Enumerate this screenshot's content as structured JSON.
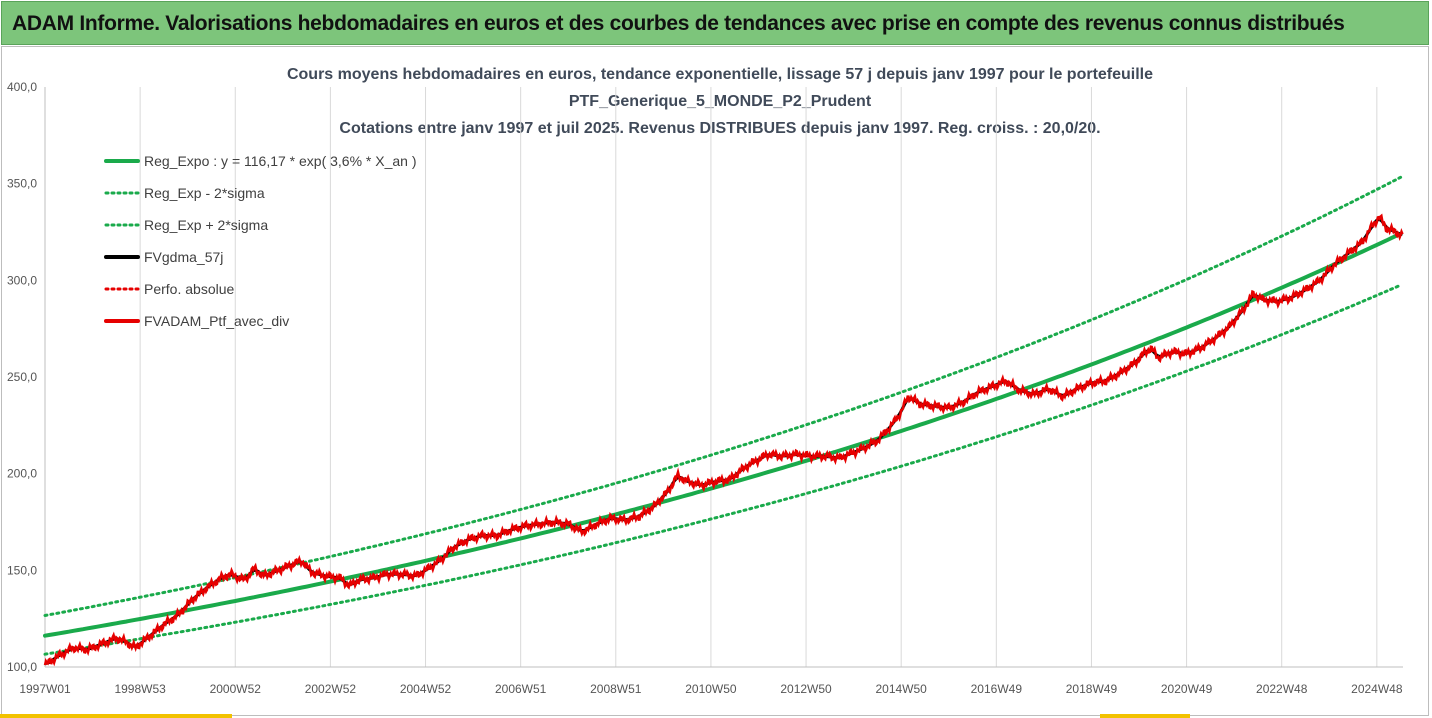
{
  "header": {
    "title": "ADAM Informe. Valorisations hebdomadaires en euros et des courbes de tendances avec prise en compte des revenus connus distribués"
  },
  "chart_data": {
    "type": "line",
    "title_lines": [
      "Cours moyens hebdomadaires  en euros, tendance exponentielle, lissage 57 j depuis janv 1997 pour le portefeuille",
      "PTF_Generique_5_MONDE_P2_Prudent",
      "Cotations  entre janv 1997 et juil 2025. Revenus DISTRIBUES depuis janv 1997. Reg. croiss. : 20,0/20."
    ],
    "x_ticks": [
      "1997W01",
      "1998W53",
      "2000W52",
      "2002W52",
      "2004W52",
      "2006W51",
      "2008W51",
      "2010W50",
      "2012W50",
      "2014W50",
      "2016W49",
      "2018W49",
      "2020W49",
      "2022W48",
      "2024W48"
    ],
    "x_tick_years": [
      1997.0,
      1999.0,
      2001.0,
      2003.0,
      2005.0,
      2007.0,
      2009.0,
      2011.0,
      2013.0,
      2015.0,
      2017.0,
      2019.0,
      2021.0,
      2023.0,
      2025.0
    ],
    "x_range": [
      1997.0,
      2025.55
    ],
    "y_ticks": [
      "100,0",
      "150,0",
      "200,0",
      "250,0",
      "300,0",
      "350,0",
      "400,0"
    ],
    "y_tick_values": [
      100,
      150,
      200,
      250,
      300,
      350,
      400
    ],
    "ylim": [
      100,
      400
    ],
    "grid": "vertical",
    "legend_position": "top-left",
    "series": [
      {
        "name": "Reg_Expo : y = 116,17 * exp( 3,6% *  X_an )",
        "kind": "trend",
        "style": "solid",
        "color": "#1aaa4b",
        "a": 116.17,
        "rate": 0.036,
        "factor": 1.0
      },
      {
        "name": "Reg_Exp - 2*sigma",
        "kind": "trend",
        "style": "dotted",
        "color": "#1aaa4b",
        "a": 116.17,
        "rate": 0.036,
        "factor": 0.918
      },
      {
        "name": "Reg_Exp + 2*sigma",
        "kind": "trend",
        "style": "dotted",
        "color": "#1aaa4b",
        "a": 116.17,
        "rate": 0.036,
        "factor": 1.09
      },
      {
        "name": "FVgdma_57j",
        "kind": "smooth",
        "style": "solid",
        "color": "#000000"
      },
      {
        "name": "Perfo. absolue",
        "kind": "legend-only",
        "style": "dotted",
        "color": "#e60000"
      },
      {
        "name": "FVADAM_Ptf_avec_div",
        "kind": "price",
        "style": "solid",
        "color": "#e60000"
      }
    ],
    "price_points": [
      [
        1997.0,
        101
      ],
      [
        1997.3,
        106
      ],
      [
        1997.6,
        110
      ],
      [
        1997.9,
        109
      ],
      [
        1998.2,
        112
      ],
      [
        1998.5,
        115
      ],
      [
        1998.7,
        113
      ],
      [
        1998.9,
        110
      ],
      [
        1999.2,
        116
      ],
      [
        1999.5,
        122
      ],
      [
        1999.8,
        127
      ],
      [
        2000.1,
        135
      ],
      [
        2000.4,
        141
      ],
      [
        2000.7,
        146
      ],
      [
        2000.9,
        148
      ],
      [
        2001.2,
        145
      ],
      [
        2001.4,
        151
      ],
      [
        2001.6,
        147
      ],
      [
        2001.9,
        150
      ],
      [
        2002.2,
        153
      ],
      [
        2002.4,
        155
      ],
      [
        2002.6,
        149
      ],
      [
        2002.9,
        147
      ],
      [
        2003.2,
        146
      ],
      [
        2003.4,
        142
      ],
      [
        2003.6,
        145
      ],
      [
        2003.9,
        146
      ],
      [
        2004.2,
        148
      ],
      [
        2004.5,
        148
      ],
      [
        2004.8,
        147
      ],
      [
        2005.0,
        150
      ],
      [
        2005.3,
        155
      ],
      [
        2005.6,
        162
      ],
      [
        2005.9,
        166
      ],
      [
        2006.2,
        168
      ],
      [
        2006.5,
        168
      ],
      [
        2006.8,
        171
      ],
      [
        2007.1,
        173
      ],
      [
        2007.4,
        174
      ],
      [
        2007.7,
        175
      ],
      [
        2008.0,
        174
      ],
      [
        2008.3,
        170
      ],
      [
        2008.6,
        174
      ],
      [
        2008.9,
        177
      ],
      [
        2009.2,
        176
      ],
      [
        2009.5,
        178
      ],
      [
        2009.8,
        183
      ],
      [
        2010.1,
        191
      ],
      [
        2010.3,
        199
      ],
      [
        2010.5,
        196
      ],
      [
        2010.8,
        194
      ],
      [
        2011.1,
        196
      ],
      [
        2011.4,
        197
      ],
      [
        2011.7,
        203
      ],
      [
        2011.9,
        206
      ],
      [
        2012.2,
        210
      ],
      [
        2012.5,
        209
      ],
      [
        2012.8,
        210
      ],
      [
        2013.1,
        209
      ],
      [
        2013.4,
        209
      ],
      [
        2013.7,
        208
      ],
      [
        2013.9,
        210
      ],
      [
        2014.2,
        213
      ],
      [
        2014.5,
        217
      ],
      [
        2014.8,
        225
      ],
      [
        2015.0,
        232
      ],
      [
        2015.15,
        240
      ],
      [
        2015.4,
        236
      ],
      [
        2015.7,
        235
      ],
      [
        2016.0,
        234
      ],
      [
        2016.3,
        237
      ],
      [
        2016.6,
        242
      ],
      [
        2016.9,
        245
      ],
      [
        2017.2,
        248
      ],
      [
        2017.5,
        243
      ],
      [
        2017.8,
        241
      ],
      [
        2018.1,
        244
      ],
      [
        2018.4,
        240
      ],
      [
        2018.7,
        244
      ],
      [
        2019.0,
        247
      ],
      [
        2019.3,
        248
      ],
      [
        2019.6,
        252
      ],
      [
        2019.9,
        257
      ],
      [
        2020.1,
        262
      ],
      [
        2020.25,
        265
      ],
      [
        2020.4,
        260
      ],
      [
        2020.7,
        263
      ],
      [
        2021.0,
        262
      ],
      [
        2021.3,
        265
      ],
      [
        2021.6,
        270
      ],
      [
        2021.9,
        276
      ],
      [
        2022.2,
        285
      ],
      [
        2022.4,
        293
      ],
      [
        2022.6,
        290
      ],
      [
        2022.9,
        289
      ],
      [
        2023.2,
        291
      ],
      [
        2023.5,
        295
      ],
      [
        2023.8,
        300
      ],
      [
        2024.1,
        308
      ],
      [
        2024.4,
        314
      ],
      [
        2024.7,
        320
      ],
      [
        2024.9,
        328
      ],
      [
        2025.05,
        333
      ],
      [
        2025.2,
        327
      ],
      [
        2025.4,
        325
      ],
      [
        2025.55,
        323
      ]
    ]
  }
}
